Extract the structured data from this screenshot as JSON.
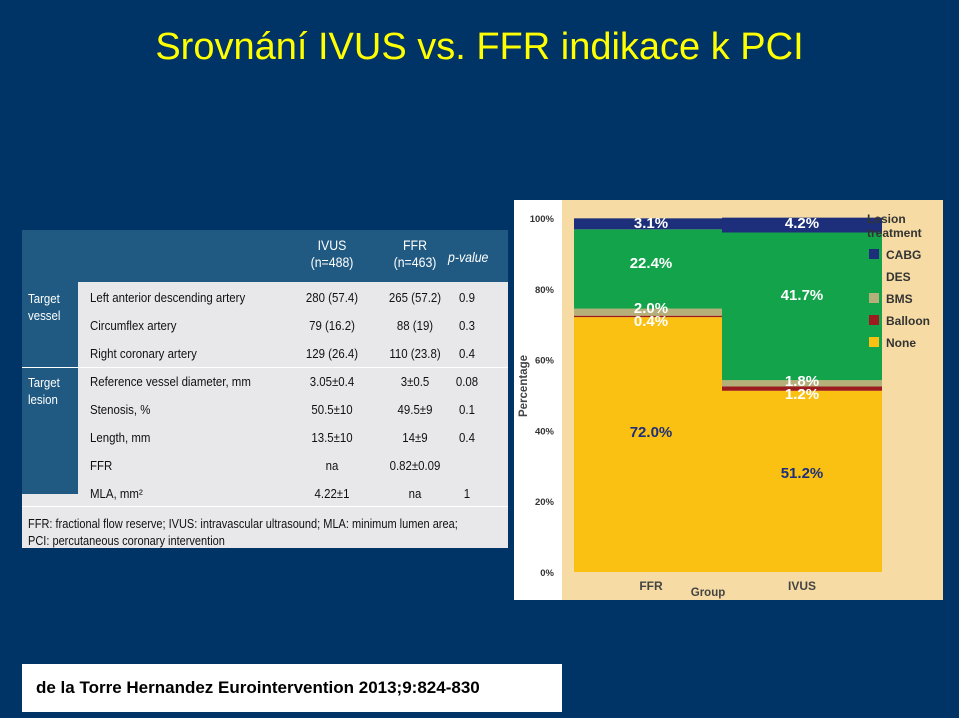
{
  "slide": {
    "title": "Srovnání IVUS vs. FFR indikace k PCI",
    "citation": "de la Torre Hernandez Eurointervention 2013;9:824-830"
  },
  "table": {
    "headers": {
      "ivus": [
        "IVUS",
        "(n=488)"
      ],
      "ffr": [
        "FFR",
        "(n=463)"
      ],
      "pvalue": "p-value"
    },
    "groups": {
      "vessel": [
        "Target",
        "vessel"
      ],
      "lesion": [
        "Target",
        "lesion"
      ]
    },
    "rows": [
      {
        "label": "Left anterior descending artery",
        "ivus": "280 (57.4)",
        "ffr": "265 (57.2)",
        "p": "0.9"
      },
      {
        "label": "Circumflex artery",
        "ivus": "79 (16.2)",
        "ffr": "88 (19)",
        "p": "0.3"
      },
      {
        "label": "Right coronary artery",
        "ivus": "129 (26.4)",
        "ffr": "110 (23.8)",
        "p": "0.4"
      },
      {
        "label": "Reference vessel diameter, mm",
        "ivus": "3.05±0.4",
        "ffr": "3±0.5",
        "p": "0.08"
      },
      {
        "label": "Stenosis, %",
        "ivus": "50.5±10",
        "ffr": "49.5±9",
        "p": "0.1"
      },
      {
        "label": "Length, mm",
        "ivus": "13.5±10",
        "ffr": "14±9",
        "p": "0.4"
      },
      {
        "label": "FFR",
        "ivus": "na",
        "ffr": "0.82±0.09",
        "p": ""
      },
      {
        "label": "MLA, mm²",
        "ivus": "4.22±1",
        "ffr": "na",
        "p": "1"
      }
    ],
    "footnote": [
      "FFR: fractional flow reserve; IVUS: intravascular ultrasound; MLA: minimum lumen area;",
      "PCI: percutaneous coronary intervention"
    ]
  },
  "chart_data": {
    "type": "bar",
    "stacked": true,
    "title": "",
    "xlabel": "Group",
    "ylabel": "Percentage",
    "ylim": [
      0,
      100
    ],
    "yticks": [
      "0%",
      "20%",
      "40%",
      "60%",
      "80%",
      "100%"
    ],
    "categories": [
      "FFR",
      "IVUS"
    ],
    "legend_title": [
      "Lesion",
      "treatment"
    ],
    "legend_position": "right",
    "series": [
      {
        "name": "None",
        "color": "#fbc112",
        "values": [
          72.0,
          51.2
        ],
        "labels": [
          "72.0%",
          "51.2%"
        ]
      },
      {
        "name": "Balloon",
        "color": "#9b1b1f",
        "values": [
          0.4,
          1.2
        ],
        "labels": [
          "0.4%",
          "1.2%"
        ]
      },
      {
        "name": "BMS",
        "color": "#b5b07a",
        "values": [
          2.0,
          1.8
        ],
        "labels": [
          "2.0%",
          "1.8%"
        ]
      },
      {
        "name": "DES",
        "color": "#13a34a",
        "values": [
          22.4,
          41.7
        ],
        "labels": [
          "22.4%",
          "41.7%"
        ]
      },
      {
        "name": "CABG",
        "color": "#1d2f7a",
        "values": [
          3.1,
          4.2
        ],
        "labels": [
          "3.1%",
          "4.2%"
        ]
      }
    ],
    "legend_order": [
      "CABG",
      "DES",
      "BMS",
      "Balloon",
      "None"
    ]
  }
}
